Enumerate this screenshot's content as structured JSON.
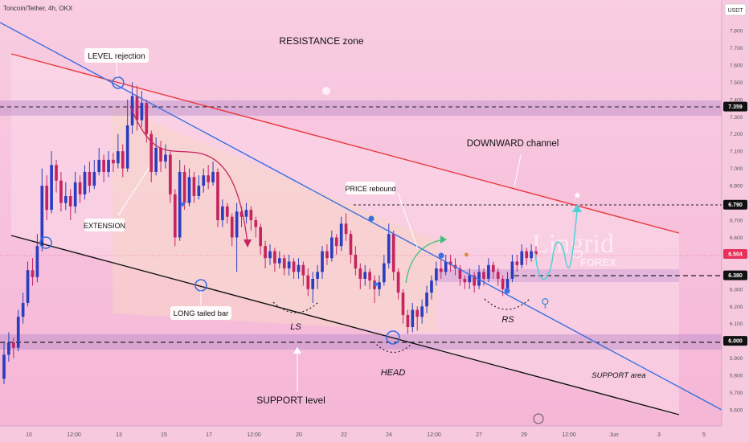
{
  "header": {
    "symbol": "Toncoin/Tether, 4h, OKX",
    "currency": "USDT"
  },
  "watermark": {
    "brand": "Lingrid",
    "sub": "FOREX"
  },
  "colors": {
    "background": "#f7c3dd",
    "up_candle": "#2b3dbf",
    "down_candle": "#c5245f",
    "resistance_line": "#e8383c",
    "trend_line": "#3a6fe0",
    "support_line": "#111111",
    "band": "#b98ac9",
    "projection": "#4cd3d8",
    "arrow_green": "#3fbf7a"
  },
  "chart_data": {
    "type": "candlestick",
    "title": "Toncoin/Tether, 4h, OKX",
    "ylim": [
      5.55,
      7.95
    ],
    "y_ticks": [
      "7.800",
      "7.700",
      "7.600",
      "7.500",
      "7.400",
      "7.300",
      "7.200",
      "7.100",
      "7.000",
      "6.900",
      "6.800",
      "6.700",
      "6.600",
      "6.500",
      "6.400",
      "6.300",
      "6.200",
      "6.100",
      "6.000",
      "5.900",
      "5.800",
      "5.700",
      "5.600"
    ],
    "x_ticks": [
      "10",
      "12:00",
      "13",
      "15",
      "17",
      "12:00",
      "20",
      "22",
      "24",
      "12:00",
      "27",
      "29",
      "12:00",
      "Jun",
      "3",
      "5"
    ],
    "price_markers": [
      {
        "label": "7.359",
        "value": 7.359,
        "style": "dark"
      },
      {
        "label": "6.790",
        "value": 6.79,
        "style": "dark"
      },
      {
        "label": "6.504",
        "value": 6.504,
        "style": "current"
      },
      {
        "label": "6.380",
        "value": 6.38,
        "style": "dark"
      },
      {
        "label": "6.000",
        "value": 6.0,
        "style": "dark"
      }
    ],
    "candles": [
      [
        5.78,
        5.92,
        5.99,
        5.75
      ],
      [
        5.92,
        5.99,
        6.05,
        5.88
      ],
      [
        5.99,
        5.96,
        6.02,
        5.9
      ],
      [
        5.96,
        6.14,
        6.18,
        5.94
      ],
      [
        6.14,
        6.22,
        6.28,
        6.1
      ],
      [
        6.22,
        6.41,
        6.46,
        6.2
      ],
      [
        6.41,
        6.37,
        6.48,
        6.32
      ],
      [
        6.37,
        6.55,
        6.62,
        6.34
      ],
      [
        6.55,
        6.9,
        7.0,
        6.52
      ],
      [
        6.9,
        6.76,
        6.96,
        6.7
      ],
      [
        6.76,
        7.02,
        7.1,
        6.74
      ],
      [
        7.02,
        6.93,
        7.05,
        6.86
      ],
      [
        6.93,
        6.8,
        6.98,
        6.75
      ],
      [
        6.8,
        6.84,
        6.92,
        6.76
      ],
      [
        6.84,
        6.78,
        6.88,
        6.7
      ],
      [
        6.78,
        6.92,
        6.98,
        6.74
      ],
      [
        6.92,
        6.85,
        6.96,
        6.8
      ],
      [
        6.85,
        6.98,
        7.02,
        6.82
      ],
      [
        6.98,
        6.9,
        7.04,
        6.86
      ],
      [
        6.9,
        6.98,
        7.05,
        6.88
      ],
      [
        6.98,
        7.05,
        7.12,
        6.96
      ],
      [
        7.05,
        6.98,
        7.08,
        6.92
      ],
      [
        6.98,
        7.05,
        7.1,
        6.95
      ],
      [
        7.05,
        7.03,
        7.09,
        6.98
      ],
      [
        7.03,
        7.1,
        7.2,
        7.0
      ],
      [
        7.1,
        7.0,
        7.14,
        6.95
      ],
      [
        7.0,
        7.25,
        7.4,
        6.98
      ],
      [
        7.25,
        7.42,
        7.5,
        7.2
      ],
      [
        7.42,
        7.28,
        7.48,
        7.22
      ],
      [
        7.28,
        7.38,
        7.45,
        7.24
      ],
      [
        7.38,
        7.2,
        7.4,
        7.15
      ],
      [
        7.2,
        6.98,
        7.22,
        6.92
      ],
      [
        6.98,
        7.12,
        7.18,
        6.96
      ],
      [
        7.12,
        7.04,
        7.16,
        6.98
      ],
      [
        7.04,
        7.08,
        7.14,
        7.0
      ],
      [
        7.08,
        6.85,
        7.1,
        6.8
      ],
      [
        6.85,
        6.6,
        6.88,
        6.55
      ],
      [
        6.6,
        6.98,
        7.05,
        6.58
      ],
      [
        6.98,
        6.8,
        7.02,
        6.76
      ],
      [
        6.8,
        6.95,
        7.0,
        6.78
      ],
      [
        6.95,
        6.84,
        6.98,
        6.8
      ],
      [
        6.84,
        6.9,
        6.96,
        6.82
      ],
      [
        6.9,
        6.96,
        7.0,
        6.86
      ],
      [
        6.96,
        6.92,
        7.02,
        6.88
      ],
      [
        6.92,
        6.98,
        7.04,
        6.9
      ],
      [
        6.98,
        6.7,
        7.0,
        6.66
      ],
      [
        6.7,
        6.78,
        6.82,
        6.66
      ],
      [
        6.78,
        6.72,
        6.8,
        6.68
      ],
      [
        6.72,
        6.6,
        6.74,
        6.55
      ],
      [
        6.6,
        6.75,
        6.8,
        6.4
      ],
      [
        6.75,
        6.72,
        6.78,
        6.66
      ],
      [
        6.72,
        6.76,
        6.8,
        6.68
      ],
      [
        6.76,
        6.7,
        6.78,
        6.64
      ],
      [
        6.7,
        6.66,
        6.72,
        6.6
      ],
      [
        6.66,
        6.55,
        6.68,
        6.5
      ],
      [
        6.55,
        6.48,
        6.58,
        6.42
      ],
      [
        6.48,
        6.52,
        6.56,
        6.44
      ],
      [
        6.52,
        6.45,
        6.54,
        6.4
      ],
      [
        6.45,
        6.48,
        6.52,
        6.42
      ],
      [
        6.48,
        6.42,
        6.5,
        6.38
      ],
      [
        6.42,
        6.46,
        6.5,
        6.38
      ],
      [
        6.46,
        6.4,
        6.48,
        6.36
      ],
      [
        6.4,
        6.44,
        6.48,
        6.36
      ],
      [
        6.44,
        6.38,
        6.46,
        6.32
      ],
      [
        6.38,
        6.3,
        6.42,
        6.26
      ],
      [
        6.3,
        6.36,
        6.4,
        6.22
      ],
      [
        6.36,
        6.4,
        6.44,
        6.3
      ],
      [
        6.4,
        6.52,
        6.55,
        6.36
      ],
      [
        6.52,
        6.48,
        6.56,
        6.44
      ],
      [
        6.48,
        6.6,
        6.64,
        6.46
      ],
      [
        6.6,
        6.55,
        6.62,
        6.5
      ],
      [
        6.55,
        6.68,
        6.72,
        6.52
      ],
      [
        6.68,
        6.62,
        6.74,
        6.58
      ],
      [
        6.62,
        6.5,
        6.64,
        6.45
      ],
      [
        6.5,
        6.42,
        6.55,
        6.38
      ],
      [
        6.42,
        6.36,
        6.45,
        6.3
      ],
      [
        6.36,
        6.4,
        6.44,
        6.32
      ],
      [
        6.4,
        6.35,
        6.42,
        6.3
      ],
      [
        6.35,
        6.3,
        6.38,
        6.22
      ],
      [
        6.3,
        6.34,
        6.38,
        6.26
      ],
      [
        6.34,
        6.45,
        6.5,
        6.32
      ],
      [
        6.45,
        6.62,
        6.68,
        6.42
      ],
      [
        6.62,
        6.4,
        6.64,
        6.35
      ],
      [
        6.4,
        6.28,
        6.42,
        6.24
      ],
      [
        6.28,
        6.15,
        6.3,
        6.1
      ],
      [
        6.15,
        6.08,
        6.18,
        6.04
      ],
      [
        6.08,
        6.18,
        6.22,
        6.05
      ],
      [
        6.18,
        6.14,
        6.2,
        6.06
      ],
      [
        6.14,
        6.2,
        6.24,
        6.1
      ],
      [
        6.2,
        6.28,
        6.32,
        6.16
      ],
      [
        6.28,
        6.35,
        6.38,
        6.24
      ],
      [
        6.35,
        6.42,
        6.46,
        6.32
      ],
      [
        6.42,
        6.4,
        6.48,
        6.36
      ],
      [
        6.4,
        6.46,
        6.5,
        6.38
      ],
      [
        6.46,
        6.44,
        6.5,
        6.4
      ],
      [
        6.44,
        6.42,
        6.48,
        6.38
      ],
      [
        6.42,
        6.36,
        6.44,
        6.32
      ],
      [
        6.36,
        6.34,
        6.38,
        6.3
      ],
      [
        6.34,
        6.38,
        6.42,
        6.3
      ],
      [
        6.38,
        6.32,
        6.4,
        6.28
      ],
      [
        6.32,
        6.4,
        6.44,
        6.3
      ],
      [
        6.4,
        6.36,
        6.42,
        6.32
      ],
      [
        6.36,
        6.44,
        6.48,
        6.34
      ],
      [
        6.44,
        6.4,
        6.46,
        6.36
      ],
      [
        6.4,
        6.36,
        6.42,
        6.32
      ],
      [
        6.36,
        6.3,
        6.38,
        6.26
      ],
      [
        6.3,
        6.36,
        6.4,
        6.28
      ],
      [
        6.36,
        6.46,
        6.5,
        6.34
      ],
      [
        6.46,
        6.44,
        6.5,
        6.4
      ],
      [
        6.44,
        6.52,
        6.56,
        6.42
      ],
      [
        6.52,
        6.48,
        6.54,
        6.44
      ],
      [
        6.48,
        6.52,
        6.56,
        6.46
      ],
      [
        6.52,
        6.504,
        6.55,
        6.48
      ]
    ],
    "annotations": [
      {
        "text": "RESISTANCE zone",
        "kind": "zone-label"
      },
      {
        "text": "LEVEL rejection",
        "kind": "callout"
      },
      {
        "text": "DOWNWARD channel",
        "kind": "callout"
      },
      {
        "text": "PRICE rebound",
        "kind": "callout"
      },
      {
        "text": "EXTENSION",
        "kind": "callout"
      },
      {
        "text": "LONG tailed bar",
        "kind": "callout"
      },
      {
        "text": "SUPPORT level",
        "kind": "zone-label"
      },
      {
        "text": "SUPPORT area",
        "kind": "zone-label"
      },
      {
        "text": "LS",
        "kind": "pattern"
      },
      {
        "text": "HEAD",
        "kind": "pattern"
      },
      {
        "text": "RS",
        "kind": "pattern"
      }
    ]
  }
}
